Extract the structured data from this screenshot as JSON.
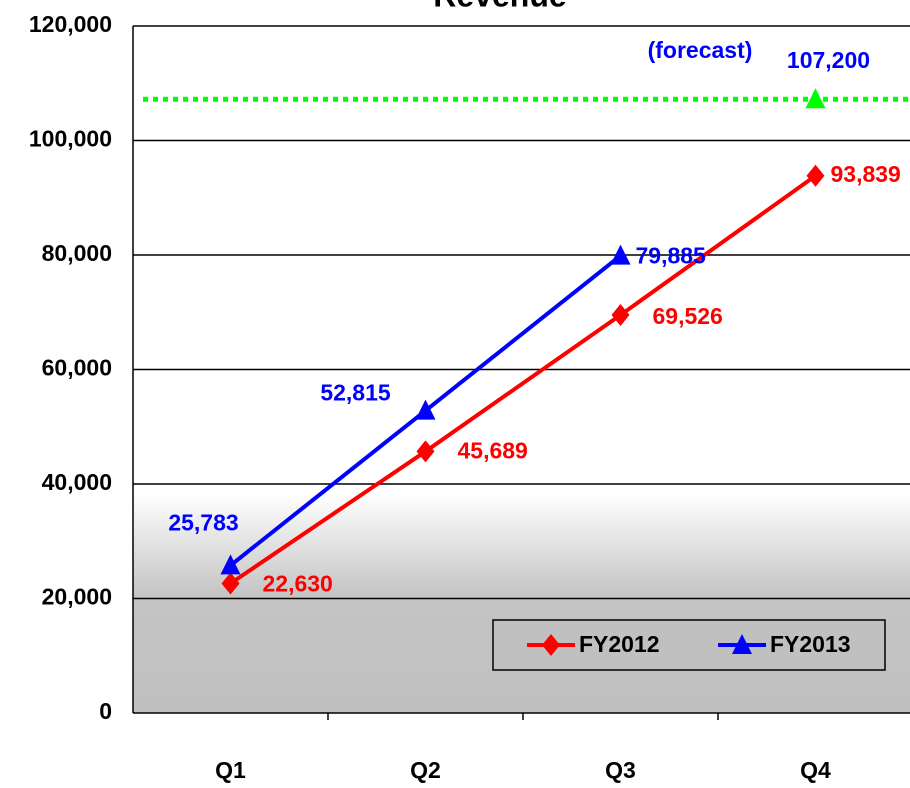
{
  "chart_data": {
    "type": "line",
    "title": "Revenue",
    "categories": [
      "Q1",
      "Q2",
      "Q3",
      "Q4"
    ],
    "series": [
      {
        "name": "FY2012",
        "color": "#ff0000",
        "marker": "diamond",
        "values": [
          22630,
          45689,
          69526,
          93839
        ],
        "value_labels": [
          "22,630",
          "45,689",
          "69,526",
          "93,839"
        ]
      },
      {
        "name": "FY2013",
        "color": "#0000ff",
        "marker": "triangle",
        "values": [
          25783,
          52815,
          79885,
          null
        ],
        "value_labels": [
          "25,783",
          "52,815",
          "79,885",
          null
        ]
      }
    ],
    "forecast": {
      "label": "(forecast)",
      "category": "Q4",
      "value": 107200,
      "value_label": "107,200",
      "color": "#00ff00"
    },
    "ylim": [
      0,
      120000
    ],
    "yticks": [
      0,
      {
        "value": 20000,
        "label": "20,000"
      },
      {
        "value": 40000,
        "label": "40,000"
      },
      {
        "value": 60000,
        "label": "60,000"
      },
      {
        "value": 80000,
        "label": "80,000"
      },
      {
        "value": 100000,
        "label": "100,000"
      },
      {
        "value": 120000,
        "label": "120,000"
      }
    ],
    "grid": true,
    "legend": "lower right"
  }
}
